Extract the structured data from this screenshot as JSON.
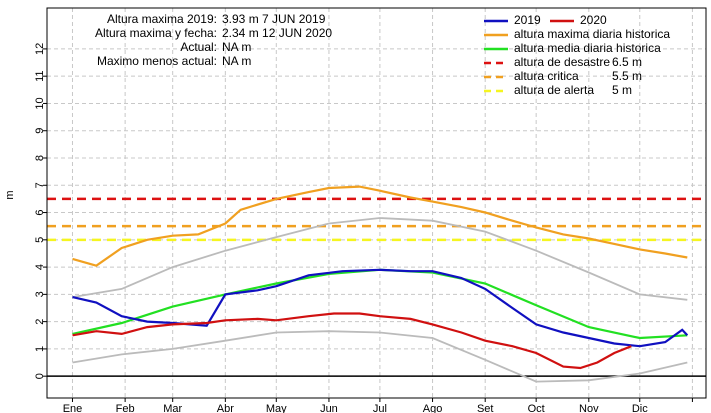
{
  "chart_data": {
    "type": "line",
    "y_label": "m",
    "xlim": [
      -14,
      374
    ],
    "ylim": [
      -0.8,
      13.5
    ],
    "xticks": [
      {
        "value": 1,
        "label": "Ene"
      },
      {
        "value": 32,
        "label": "Feb"
      },
      {
        "value": 60,
        "label": "Mar"
      },
      {
        "value": 91,
        "label": "Abr"
      },
      {
        "value": 121,
        "label": "May"
      },
      {
        "value": 152,
        "label": "Jun"
      },
      {
        "value": 182,
        "label": "Jul"
      },
      {
        "value": 213,
        "label": "Ago"
      },
      {
        "value": 244,
        "label": "Set"
      },
      {
        "value": 274,
        "label": "Oct"
      },
      {
        "value": 305,
        "label": "Nov"
      },
      {
        "value": 335,
        "label": "Dic"
      },
      366
    ],
    "yticks": [
      0,
      1,
      2,
      3,
      4,
      5,
      6,
      7,
      8,
      9,
      10,
      11,
      12
    ],
    "grid": true,
    "annotations": [
      [
        "Altura maxima 2019:",
        "3.93 m 7 JUN 2019"
      ],
      [
        "Altura maxima y fecha:",
        "2.34 m 12 JUN 2020"
      ],
      [
        "Actual:",
        "NA m"
      ],
      [
        "Maximo menos actual:",
        "NA m"
      ]
    ],
    "series": [
      {
        "color": "#bbbbbb",
        "x": [
          1,
          30,
          60,
          91,
          121,
          152,
          182,
          213,
          244,
          274,
          305,
          335,
          363
        ],
        "values": [
          2.9,
          3.2,
          4.0,
          4.6,
          5.1,
          5.6,
          5.8,
          5.7,
          5.3,
          4.6,
          3.8,
          3.0,
          2.8
        ]
      },
      {
        "color": "#bbbbbb",
        "x": [
          1,
          30,
          60,
          91,
          121,
          152,
          182,
          213,
          244,
          274,
          305,
          335,
          363
        ],
        "values": [
          0.5,
          0.8,
          1.0,
          1.3,
          1.6,
          1.65,
          1.6,
          1.4,
          0.6,
          -0.2,
          -0.15,
          0.1,
          0.5
        ]
      },
      {
        "name": "altura maxima diaria historica",
        "color": "#f0a020",
        "x": [
          1,
          15,
          30,
          45,
          60,
          75,
          91,
          100,
          121,
          140,
          152,
          170,
          182,
          200,
          213,
          230,
          244,
          260,
          274,
          290,
          305,
          320,
          335,
          350,
          363
        ],
        "values": [
          4.3,
          4.05,
          4.7,
          5.0,
          5.15,
          5.2,
          5.6,
          6.1,
          6.5,
          6.75,
          6.9,
          6.95,
          6.8,
          6.55,
          6.4,
          6.2,
          6.0,
          5.7,
          5.45,
          5.2,
          5.05,
          4.85,
          4.65,
          4.5,
          4.35
        ]
      },
      {
        "name": "altura media diaria historica",
        "color": "#22e022",
        "x": [
          1,
          30,
          60,
          91,
          121,
          152,
          182,
          213,
          244,
          274,
          305,
          335,
          363
        ],
        "values": [
          1.55,
          1.95,
          2.55,
          3.0,
          3.4,
          3.75,
          3.9,
          3.8,
          3.4,
          2.6,
          1.8,
          1.4,
          1.5
        ]
      },
      {
        "name": "2019",
        "color": "#1010c0",
        "x": [
          1,
          15,
          30,
          45,
          60,
          80,
          91,
          110,
          121,
          140,
          160,
          182,
          200,
          213,
          230,
          244,
          260,
          274,
          290,
          305,
          320,
          335,
          350,
          360,
          363
        ],
        "values": [
          2.9,
          2.7,
          2.2,
          2.0,
          1.95,
          1.85,
          3.0,
          3.15,
          3.3,
          3.7,
          3.85,
          3.9,
          3.85,
          3.85,
          3.6,
          3.2,
          2.5,
          1.9,
          1.6,
          1.4,
          1.2,
          1.1,
          1.25,
          1.7,
          1.5
        ]
      },
      {
        "name": "2020",
        "color": "#d01010",
        "x": [
          1,
          15,
          30,
          45,
          60,
          80,
          91,
          110,
          121,
          140,
          155,
          170,
          182,
          200,
          213,
          230,
          244,
          260,
          274,
          290,
          300,
          310,
          320,
          330
        ],
        "values": [
          1.5,
          1.65,
          1.55,
          1.8,
          1.9,
          1.95,
          2.05,
          2.1,
          2.05,
          2.2,
          2.3,
          2.3,
          2.2,
          2.1,
          1.9,
          1.6,
          1.3,
          1.1,
          0.85,
          0.35,
          0.3,
          0.5,
          0.85,
          1.1
        ]
      }
    ],
    "thresholds": [
      {
        "name": "altura de desastre",
        "value": 6.5,
        "value_label": "6.5 m",
        "color": "#dd1111"
      },
      {
        "name": "altura critica",
        "value": 5.5,
        "value_label": "5.5 m",
        "color": "#f0a020"
      },
      {
        "name": "altura de alerta",
        "value": 5,
        "value_label": "5 m",
        "color": "#f5f520"
      }
    ]
  }
}
